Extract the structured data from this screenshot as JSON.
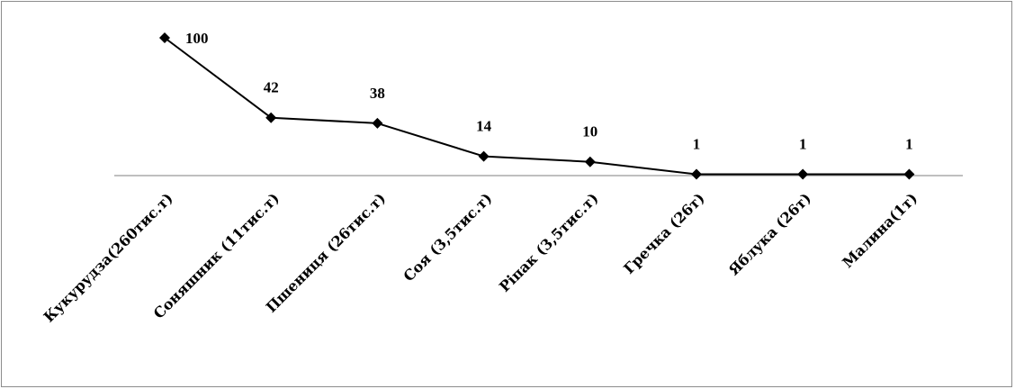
{
  "chart_data": {
    "type": "line",
    "categories": [
      "Кукурудза(260тис.т)",
      "Соняшник (11тис.т)",
      "Пшениця (26тис.т)",
      "Соя (3,5тис.т)",
      "Ріпак (3,5тис.т)",
      "Гречка (26т)",
      "Яблука (26т)",
      "Малина(1т)"
    ],
    "values": [
      100,
      42,
      38,
      14,
      10,
      1,
      1,
      1
    ],
    "data_labels": [
      "100",
      "42",
      "38",
      "14",
      "10",
      "1",
      "1",
      "1"
    ],
    "title": "",
    "xlabel": "",
    "ylabel": "",
    "ylim": [
      0,
      100
    ],
    "grid": false,
    "legend": "none",
    "marker": "diamond",
    "line_color": "#000000",
    "axis_color": "#7f7f7f"
  }
}
